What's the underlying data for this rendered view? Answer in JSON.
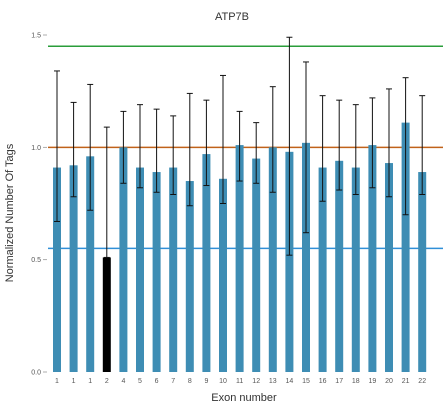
{
  "chart_data": {
    "type": "bar",
    "title": "ATP7B",
    "xlabel": "Exon number",
    "ylabel": "Normalized Number Of Tags",
    "ylim": [
      0.0,
      1.5
    ],
    "yticks": [
      "0.0",
      "0.5",
      "1.0",
      "1.5"
    ],
    "categories": [
      "1",
      "1",
      "1",
      "2",
      "4",
      "5",
      "6",
      "7",
      "8",
      "9",
      "10",
      "11",
      "12",
      "13",
      "14",
      "15",
      "16",
      "17",
      "18",
      "19",
      "20",
      "21",
      "22"
    ],
    "values": [
      0.91,
      0.92,
      0.96,
      0.51,
      1.0,
      0.91,
      0.89,
      0.91,
      0.85,
      0.97,
      0.86,
      1.01,
      0.95,
      1.0,
      0.98,
      1.02,
      0.91,
      0.94,
      0.91,
      1.01,
      0.93,
      1.11,
      0.89
    ],
    "error_low": [
      0.67,
      0.78,
      0.72,
      0.51,
      0.84,
      0.82,
      0.8,
      0.79,
      0.74,
      0.83,
      0.75,
      0.85,
      0.84,
      0.8,
      0.52,
      0.62,
      0.76,
      0.81,
      0.79,
      0.82,
      0.78,
      0.7,
      0.79
    ],
    "error_high": [
      1.34,
      1.2,
      1.28,
      1.09,
      1.16,
      1.19,
      1.17,
      1.14,
      1.24,
      1.21,
      1.32,
      1.16,
      1.11,
      1.27,
      1.49,
      1.38,
      1.23,
      1.21,
      1.19,
      1.22,
      1.26,
      1.31,
      1.23
    ],
    "highlight_index": 3,
    "reference_lines": [
      {
        "value": 1.45,
        "color": "#2a9d3a"
      },
      {
        "value": 1.0,
        "color": "#c0621a"
      },
      {
        "value": 0.55,
        "color": "#2f8fd8"
      }
    ],
    "colors": {
      "bar": "#3e8db4",
      "highlight": "#000000",
      "error": "#111111"
    },
    "grid": false,
    "legend": "none"
  }
}
